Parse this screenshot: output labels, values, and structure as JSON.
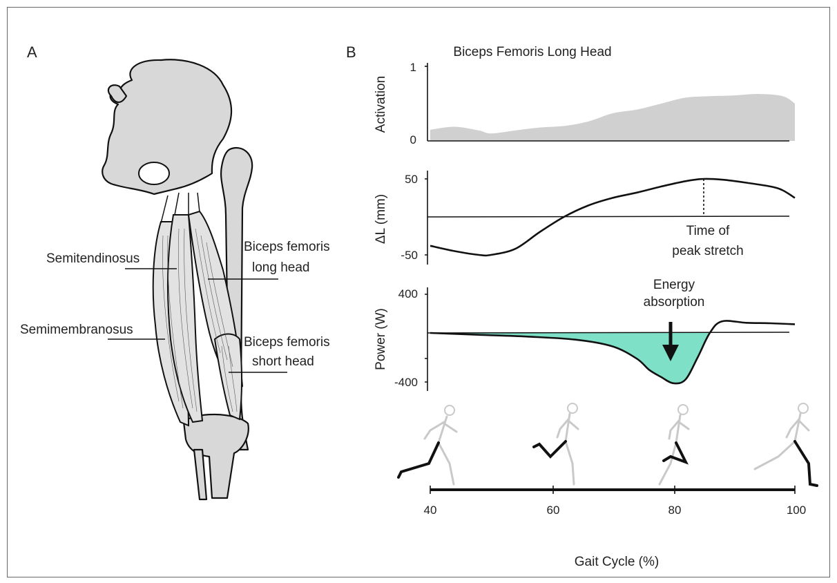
{
  "panel_a": {
    "label": "A",
    "muscles": {
      "semitendinosus": "Semitendinosus",
      "semimembranosus": "Semimembranosus",
      "bflh_line1": "Biceps femoris",
      "bflh_line2": "long head",
      "bfsh_line1": "Biceps femoris",
      "bfsh_line2": "short head"
    }
  },
  "panel_b": {
    "label": "B",
    "title": "Biceps Femoris Long Head",
    "activation": {
      "ylabel": "Activation",
      "ticks": [
        "1",
        "0"
      ]
    },
    "length": {
      "ylabel": "ΔL (mm)",
      "ticks": [
        "50",
        "-50"
      ],
      "annotation_line1": "Time of",
      "annotation_line2": "peak stretch"
    },
    "power": {
      "ylabel": "Power (W)",
      "ticks": [
        "400",
        "-400"
      ],
      "annotation_line1": "Energy",
      "annotation_line2": "absorption",
      "fill_color": "#7fe0c8"
    },
    "xaxis": {
      "ticks": [
        "40",
        "60",
        "80",
        "100"
      ],
      "label": "Gait Cycle (%)"
    }
  },
  "chart_data": [
    {
      "type": "area",
      "title": "Biceps Femoris Long Head",
      "ylabel": "Activation",
      "ylim": [
        0,
        1
      ],
      "x": [
        40,
        44,
        48,
        50,
        54,
        58,
        62,
        66,
        70,
        74,
        78,
        82,
        86,
        90,
        94,
        98,
        100
      ],
      "values": [
        0.15,
        0.19,
        0.14,
        0.1,
        0.14,
        0.18,
        0.2,
        0.26,
        0.37,
        0.42,
        0.5,
        0.58,
        0.6,
        0.61,
        0.63,
        0.6,
        0.5
      ]
    },
    {
      "type": "line",
      "ylabel": "ΔL (mm)",
      "ylim": [
        -60,
        60
      ],
      "x": [
        40,
        44,
        48,
        50,
        54,
        58,
        62,
        66,
        70,
        74,
        78,
        82,
        85,
        88,
        92,
        96,
        98,
        100
      ],
      "values": [
        -38,
        -45,
        -50,
        -50,
        -42,
        -20,
        0,
        15,
        25,
        32,
        40,
        47,
        50,
        49,
        45,
        40,
        35,
        25
      ],
      "annotations": [
        "Time of peak stretch"
      ]
    },
    {
      "type": "area",
      "ylabel": "Power (W)",
      "ylim": [
        -400,
        400
      ],
      "x": [
        40,
        48,
        56,
        64,
        70,
        74,
        76,
        78,
        80,
        82,
        84,
        86,
        88,
        92,
        96,
        100
      ],
      "values": [
        0,
        -15,
        -30,
        -55,
        -110,
        -210,
        -300,
        -360,
        -410,
        -380,
        -200,
        0,
        120,
        105,
        100,
        90
      ],
      "annotations": [
        "Energy absorption"
      ]
    }
  ]
}
